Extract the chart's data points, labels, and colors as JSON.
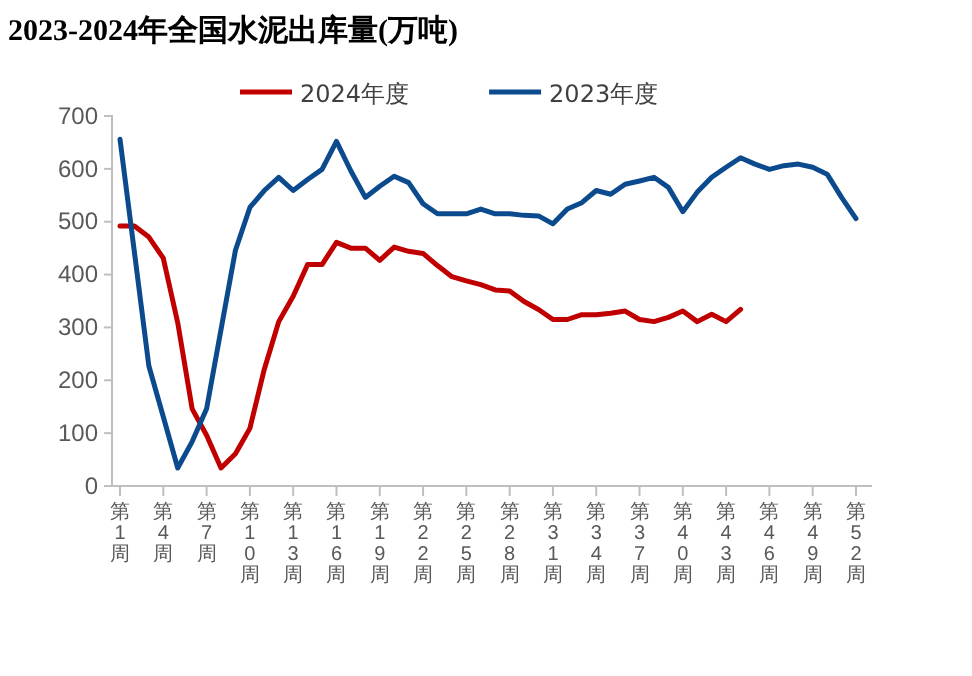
{
  "chart_data": {
    "type": "line",
    "title": "2023-2024年全国水泥出库量(万吨)",
    "categories": [
      "第1周",
      null,
      null,
      "第4周",
      null,
      null,
      "第7周",
      null,
      null,
      "第10周",
      null,
      null,
      "第13周",
      null,
      null,
      "第16周",
      null,
      null,
      "第19周",
      null,
      null,
      "第22周",
      null,
      null,
      "第25周",
      null,
      null,
      "第28周",
      null,
      null,
      "第31周",
      null,
      null,
      "第34周",
      null,
      null,
      "第37周",
      null,
      null,
      "第40周",
      null,
      null,
      "第43周",
      null,
      null,
      "第46周",
      null,
      null,
      "第49周",
      null,
      null,
      "第52周"
    ],
    "series": [
      {
        "name": "2024年度",
        "color": "#c00000",
        "values": [
          492,
          492,
          471,
          431,
          309,
          146,
          96,
          34,
          61,
          109,
          221,
          311,
          359,
          419,
          419,
          461,
          450,
          450,
          427,
          452,
          444,
          440,
          417,
          396,
          388,
          381,
          371,
          369,
          349,
          334,
          315,
          315,
          324,
          324,
          327,
          331,
          315,
          311,
          319,
          331,
          311,
          325,
          311,
          334,
          null,
          null,
          null,
          null,
          null,
          null,
          null,
          null
        ]
      },
      {
        "name": "2023年度",
        "color": "#0c4a8e",
        "values": [
          656,
          442,
          227,
          131,
          34,
          84,
          146,
          296,
          446,
          527,
          559,
          584,
          559,
          580,
          599,
          652,
          596,
          546,
          567,
          586,
          574,
          534,
          515,
          515,
          515,
          524,
          515,
          515,
          512,
          511,
          496,
          524,
          536,
          559,
          552,
          571,
          577,
          584,
          565,
          519,
          556,
          584,
          603,
          621,
          609,
          599,
          606,
          609,
          603,
          590,
          546,
          506
        ]
      }
    ],
    "ylim": [
      0,
      700
    ],
    "yticks": [
      0,
      100,
      200,
      300,
      400,
      500,
      600,
      700
    ],
    "legend": "top",
    "marker": "none",
    "line_style": "solid"
  }
}
